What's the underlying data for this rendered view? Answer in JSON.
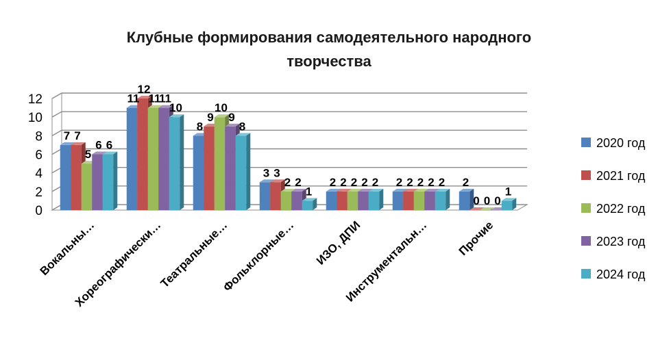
{
  "chart_data": {
    "type": "bar",
    "title_lines": [
      "Клубные формирования самодеятельного народного",
      "творчества"
    ],
    "categories": [
      "Вокальны…",
      "Хореографически…",
      "Театральные…",
      "Фольклорные…",
      "ИЗО, ДПИ",
      "Инструментальн…",
      "Прочие"
    ],
    "series": [
      {
        "name": "2020 год",
        "values": [
          7,
          11,
          8,
          3,
          2,
          2,
          2
        ],
        "color": "#4f81bd"
      },
      {
        "name": "2021 год",
        "values": [
          7,
          12,
          9,
          3,
          2,
          2,
          0
        ],
        "color": "#c0504d"
      },
      {
        "name": "2022 год",
        "values": [
          5,
          11,
          10,
          2,
          2,
          2,
          0
        ],
        "color": "#9bbb59"
      },
      {
        "name": "2023 год",
        "values": [
          6,
          11,
          9,
          2,
          2,
          2,
          0
        ],
        "color": "#8064a2"
      },
      {
        "name": "2024 год",
        "values": [
          6,
          10,
          8,
          1,
          2,
          2,
          1
        ],
        "color": "#4bacc6"
      }
    ],
    "ylim": [
      0,
      12
    ],
    "yticks": [
      0,
      2,
      4,
      6,
      8,
      10,
      12
    ],
    "grid": true,
    "legend_position": "right",
    "data_labels": true
  }
}
